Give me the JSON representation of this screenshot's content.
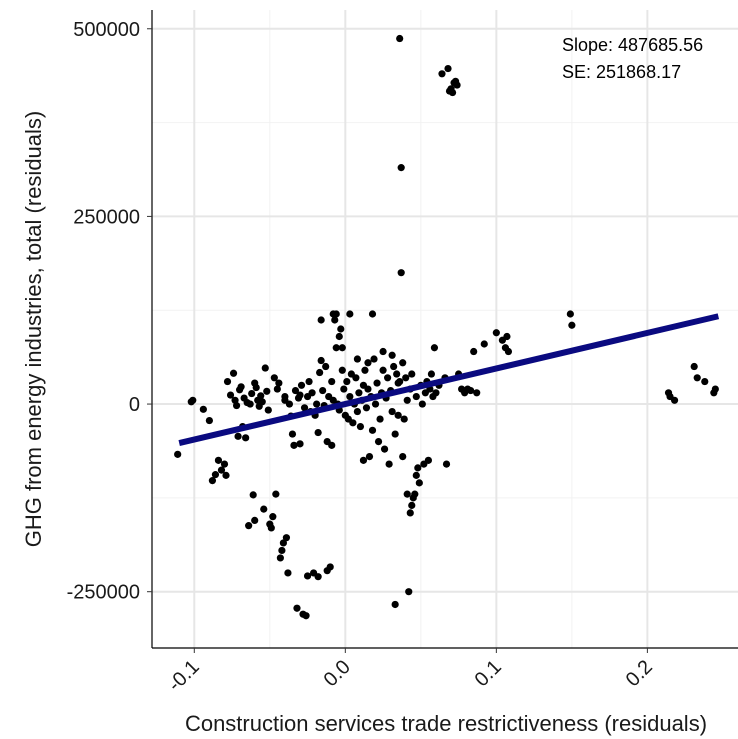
{
  "chart_data": {
    "type": "scatter",
    "xlabel": "Construction services trade restrictiveness (residuals)",
    "ylabel": "GHG from energy industries, total (residuals)",
    "xlim": [
      -0.128,
      0.26
    ],
    "ylim": [
      -325000,
      525000
    ],
    "x_ticks": [
      -0.1,
      0.0,
      0.1,
      0.2
    ],
    "x_tick_labels": [
      "-0.1",
      "0.0",
      "0.1",
      "0.2"
    ],
    "y_ticks": [
      -250000,
      0,
      250000,
      500000
    ],
    "y_tick_labels": [
      "-250000",
      "0",
      "250000",
      "500000"
    ],
    "grid": true,
    "annotations": [
      "Slope: 487685.56",
      "SE: 251868.17"
    ],
    "fit_line": {
      "x": [
        -0.11,
        0.247
      ],
      "y": [
        -52000,
        117000
      ],
      "color": "#0a0a80"
    },
    "point_color": "#000000",
    "points": [
      [
        -0.111,
        -67000
      ],
      [
        -0.102,
        3000
      ],
      [
        -0.101,
        5000
      ],
      [
        -0.094,
        -7000
      ],
      [
        -0.09,
        -22000
      ],
      [
        -0.088,
        -102000
      ],
      [
        -0.086,
        -94000
      ],
      [
        -0.084,
        -75000
      ],
      [
        -0.082,
        -88000
      ],
      [
        -0.08,
        -80000
      ],
      [
        -0.079,
        -95000
      ],
      [
        -0.078,
        30000
      ],
      [
        -0.076,
        12000
      ],
      [
        -0.074,
        41000
      ],
      [
        -0.073,
        5000
      ],
      [
        -0.072,
        -2000
      ],
      [
        -0.071,
        -43000
      ],
      [
        -0.07,
        19000
      ],
      [
        -0.069,
        23000
      ],
      [
        -0.068,
        -30000
      ],
      [
        -0.067,
        8000
      ],
      [
        -0.066,
        -45000
      ],
      [
        -0.065,
        2000
      ],
      [
        -0.064,
        -162000
      ],
      [
        -0.063,
        0
      ],
      [
        -0.062,
        14000
      ],
      [
        -0.061,
        -121000
      ],
      [
        -0.06,
        -155000
      ],
      [
        -0.06,
        28000
      ],
      [
        -0.059,
        22000
      ],
      [
        -0.058,
        5000
      ],
      [
        -0.057,
        -3000
      ],
      [
        -0.056,
        11000
      ],
      [
        -0.055,
        3000
      ],
      [
        -0.054,
        -140000
      ],
      [
        -0.053,
        48000
      ],
      [
        -0.052,
        17000
      ],
      [
        -0.051,
        -8000
      ],
      [
        -0.05,
        -160000
      ],
      [
        -0.049,
        -165000
      ],
      [
        -0.048,
        -150000
      ],
      [
        -0.047,
        35000
      ],
      [
        -0.046,
        -120000
      ],
      [
        -0.045,
        20000
      ],
      [
        -0.044,
        28000
      ],
      [
        -0.043,
        -205000
      ],
      [
        -0.042,
        -195000
      ],
      [
        -0.041,
        -185000
      ],
      [
        -0.04,
        10000
      ],
      [
        -0.04,
        5000
      ],
      [
        -0.039,
        -178000
      ],
      [
        -0.038,
        -225000
      ],
      [
        -0.037,
        0
      ],
      [
        -0.036,
        -16000
      ],
      [
        -0.035,
        -40000
      ],
      [
        -0.034,
        -55000
      ],
      [
        -0.033,
        18000
      ],
      [
        -0.032,
        -272000
      ],
      [
        -0.031,
        8000
      ],
      [
        -0.03,
        12000
      ],
      [
        -0.03,
        -53000
      ],
      [
        -0.029,
        25000
      ],
      [
        -0.028,
        -280000
      ],
      [
        -0.027,
        -5000
      ],
      [
        -0.026,
        -282000
      ],
      [
        -0.025,
        -229000
      ],
      [
        -0.025,
        10000
      ],
      [
        -0.024,
        30000
      ],
      [
        -0.023,
        -10000
      ],
      [
        -0.022,
        15000
      ],
      [
        -0.021,
        -225000
      ],
      [
        -0.02,
        -15000
      ],
      [
        -0.019,
        0
      ],
      [
        -0.018,
        -38000
      ],
      [
        -0.018,
        -230000
      ],
      [
        -0.017,
        42000
      ],
      [
        -0.016,
        112000
      ],
      [
        -0.016,
        58000
      ],
      [
        -0.015,
        18000
      ],
      [
        -0.014,
        -2000
      ],
      [
        -0.013,
        50000
      ],
      [
        -0.012,
        -50000
      ],
      [
        -0.012,
        -222000
      ],
      [
        -0.011,
        10000
      ],
      [
        -0.01,
        -217000
      ],
      [
        -0.009,
        -55000
      ],
      [
        -0.009,
        30000
      ],
      [
        -0.008,
        120000
      ],
      [
        -0.008,
        5000
      ],
      [
        -0.007,
        112000
      ],
      [
        -0.006,
        120000
      ],
      [
        -0.006,
        75000
      ],
      [
        -0.005,
        0
      ],
      [
        -0.004,
        -8000
      ],
      [
        -0.004,
        90000
      ],
      [
        -0.003,
        100000
      ],
      [
        -0.002,
        75000
      ],
      [
        -0.002,
        45000
      ],
      [
        -0.001,
        20000
      ],
      [
        0.0,
        -15000
      ],
      [
        0.001,
        30000
      ],
      [
        0.002,
        -20000
      ],
      [
        0.003,
        10000
      ],
      [
        0.003,
        120000
      ],
      [
        0.004,
        40000
      ],
      [
        0.005,
        -25000
      ],
      [
        0.006,
        0
      ],
      [
        0.007,
        35000
      ],
      [
        0.008,
        -10000
      ],
      [
        0.008,
        60000
      ],
      [
        0.009,
        15000
      ],
      [
        0.01,
        -30000
      ],
      [
        0.011,
        5000
      ],
      [
        0.012,
        25000
      ],
      [
        0.012,
        -75000
      ],
      [
        0.013,
        45000
      ],
      [
        0.014,
        -5000
      ],
      [
        0.015,
        55000
      ],
      [
        0.015,
        20000
      ],
      [
        0.016,
        -70000
      ],
      [
        0.017,
        10000
      ],
      [
        0.018,
        120000
      ],
      [
        0.018,
        -35000
      ],
      [
        0.019,
        60000
      ],
      [
        0.02,
        0
      ],
      [
        0.021,
        28000
      ],
      [
        0.022,
        -50000
      ],
      [
        0.023,
        -20000
      ],
      [
        0.024,
        15000
      ],
      [
        0.025,
        45000
      ],
      [
        0.025,
        70000
      ],
      [
        0.026,
        -60000
      ],
      [
        0.027,
        8000
      ],
      [
        0.028,
        35000
      ],
      [
        0.029,
        -80000
      ],
      [
        0.03,
        18000
      ],
      [
        0.031,
        65000
      ],
      [
        0.031,
        -10000
      ],
      [
        0.032,
        50000
      ],
      [
        0.033,
        -40000
      ],
      [
        0.033,
        -267000
      ],
      [
        0.034,
        40000
      ],
      [
        0.035,
        28000
      ],
      [
        0.035,
        -15000
      ],
      [
        0.036,
        487000
      ],
      [
        0.036,
        30000
      ],
      [
        0.037,
        315000
      ],
      [
        0.037,
        175000
      ],
      [
        0.038,
        55000
      ],
      [
        0.038,
        -70000
      ],
      [
        0.039,
        -20000
      ],
      [
        0.04,
        35000
      ],
      [
        0.041,
        5000
      ],
      [
        0.041,
        -120000
      ],
      [
        0.042,
        -250000
      ],
      [
        0.043,
        20000
      ],
      [
        0.043,
        -145000
      ],
      [
        0.044,
        40000
      ],
      [
        0.044,
        -135000
      ],
      [
        0.045,
        -125000
      ],
      [
        0.046,
        -120000
      ],
      [
        0.047,
        -95000
      ],
      [
        0.047,
        10000
      ],
      [
        0.048,
        -85000
      ],
      [
        0.049,
        -105000
      ],
      [
        0.05,
        25000
      ],
      [
        0.051,
        0
      ],
      [
        0.052,
        -80000
      ],
      [
        0.053,
        15000
      ],
      [
        0.054,
        30000
      ],
      [
        0.055,
        -75000
      ],
      [
        0.056,
        20000
      ],
      [
        0.057,
        40000
      ],
      [
        0.058,
        10000
      ],
      [
        0.059,
        75000
      ],
      [
        0.06,
        15000
      ],
      [
        0.062,
        25000
      ],
      [
        0.064,
        440000
      ],
      [
        0.066,
        35000
      ],
      [
        0.067,
        -80000
      ],
      [
        0.068,
        447000
      ],
      [
        0.069,
        417000
      ],
      [
        0.07,
        420000
      ],
      [
        0.071,
        415000
      ],
      [
        0.072,
        428000
      ],
      [
        0.073,
        430000
      ],
      [
        0.074,
        425000
      ],
      [
        0.075,
        40000
      ],
      [
        0.077,
        20000
      ],
      [
        0.079,
        15000
      ],
      [
        0.081,
        20000
      ],
      [
        0.083,
        18000
      ],
      [
        0.085,
        70000
      ],
      [
        0.087,
        15000
      ],
      [
        0.092,
        80000
      ],
      [
        0.1,
        95000
      ],
      [
        0.104,
        85000
      ],
      [
        0.106,
        75000
      ],
      [
        0.107,
        90000
      ],
      [
        0.108,
        70000
      ],
      [
        0.149,
        120000
      ],
      [
        0.15,
        105000
      ],
      [
        0.214,
        15000
      ],
      [
        0.215,
        10000
      ],
      [
        0.218,
        5000
      ],
      [
        0.231,
        50000
      ],
      [
        0.233,
        35000
      ],
      [
        0.238,
        30000
      ],
      [
        0.244,
        15000
      ],
      [
        0.245,
        20000
      ]
    ]
  }
}
